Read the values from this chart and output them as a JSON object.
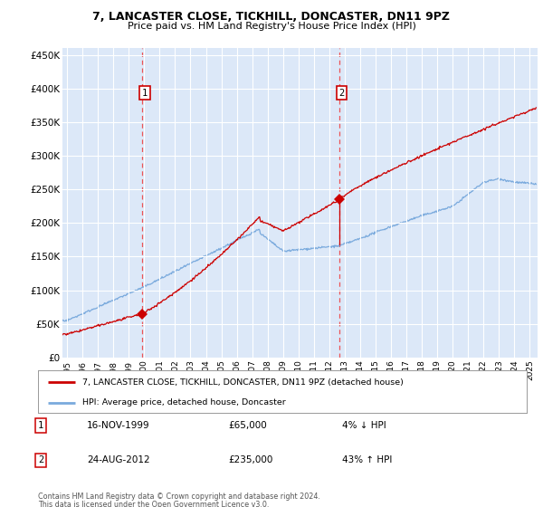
{
  "title1": "7, LANCASTER CLOSE, TICKHILL, DONCASTER, DN11 9PZ",
  "title2": "Price paid vs. HM Land Registry's House Price Index (HPI)",
  "plot_bg_color": "#dce8f8",
  "ylim": [
    0,
    460000
  ],
  "yticks": [
    0,
    50000,
    100000,
    150000,
    200000,
    250000,
    300000,
    350000,
    400000,
    450000
  ],
  "ytick_labels": [
    "£0",
    "£50K",
    "£100K",
    "£150K",
    "£200K",
    "£250K",
    "£300K",
    "£350K",
    "£400K",
    "£450K"
  ],
  "xlim_start": 1994.7,
  "xlim_end": 2025.5,
  "xticks": [
    1995,
    1996,
    1997,
    1998,
    1999,
    2000,
    2001,
    2002,
    2003,
    2004,
    2005,
    2006,
    2007,
    2008,
    2009,
    2010,
    2011,
    2012,
    2013,
    2014,
    2015,
    2016,
    2017,
    2018,
    2019,
    2020,
    2021,
    2022,
    2023,
    2024,
    2025
  ],
  "purchase1_x": 1999.88,
  "purchase1_y": 65000,
  "purchase2_x": 2012.65,
  "purchase2_y": 235000,
  "legend_label_red": "7, LANCASTER CLOSE, TICKHILL, DONCASTER, DN11 9PZ (detached house)",
  "legend_label_blue": "HPI: Average price, detached house, Doncaster",
  "footer1": "Contains HM Land Registry data © Crown copyright and database right 2024.",
  "footer2": "This data is licensed under the Open Government Licence v3.0.",
  "table_row1": [
    "1",
    "16-NOV-1999",
    "£65,000",
    "4% ↓ HPI"
  ],
  "table_row2": [
    "2",
    "24-AUG-2012",
    "£235,000",
    "43% ↑ HPI"
  ],
  "red_color": "#cc0000",
  "blue_color": "#7aaadd",
  "dashed_color": "#ee4444"
}
